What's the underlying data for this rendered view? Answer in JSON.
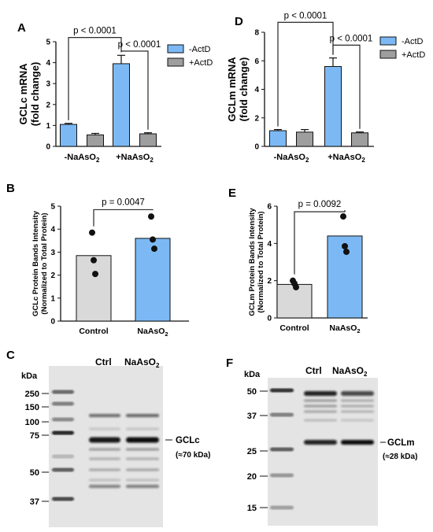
{
  "panels": {
    "A": "A",
    "B": "B",
    "C": "C",
    "D": "D",
    "E": "E",
    "F": "F"
  },
  "chart_data": [
    {
      "id": "A",
      "type": "bar",
      "ylabel_line1": "GCLc mRNA",
      "ylabel_line2": "(fold change)",
      "ylim": [
        0,
        5
      ],
      "yticks": [
        "0",
        "1",
        "2",
        "3",
        "4",
        "5"
      ],
      "categories": [
        {
          "base": "-NaAsO",
          "sub": "2"
        },
        {
          "base": "+NaAsO",
          "sub": "2"
        }
      ],
      "series": [
        {
          "name": "-ActD",
          "color": "#7cb9f4",
          "values": [
            1.05,
            3.95
          ],
          "errors": [
            0.05,
            0.4
          ]
        },
        {
          "name": "+ActD",
          "color": "#9e9e9e",
          "values": [
            0.55,
            0.6
          ],
          "errors": [
            0.07,
            0.05
          ]
        }
      ],
      "annotations": [
        {
          "text": "p < 0.0001",
          "from": "g0s0",
          "to": "g1s0",
          "level": 5.2
        },
        {
          "text": "p < 0.0001",
          "from": "g1s0",
          "to": "g1s1",
          "level": 4.55
        }
      ]
    },
    {
      "id": "D",
      "type": "bar",
      "ylabel_line1": "GCLm mRNA",
      "ylabel_line2": "(fold change)",
      "ylim": [
        0,
        8
      ],
      "yticks": [
        "0",
        "2",
        "4",
        "6",
        "8"
      ],
      "categories": [
        {
          "base": "-NaAsO",
          "sub": "2"
        },
        {
          "base": "+NaAsO",
          "sub": "2"
        }
      ],
      "series": [
        {
          "name": "-ActD",
          "color": "#7cb9f4",
          "values": [
            1.1,
            5.6
          ],
          "errors": [
            0.08,
            0.6
          ]
        },
        {
          "name": "+ActD",
          "color": "#9e9e9e",
          "values": [
            1.0,
            0.95
          ],
          "errors": [
            0.18,
            0.06
          ]
        }
      ],
      "annotations": [
        {
          "text": "p < 0.0001",
          "from": "g0s0",
          "to": "g1s0",
          "level": 8.7
        },
        {
          "text": "p < 0.0001",
          "from": "g1s0",
          "to": "g1s1",
          "level": 7.1
        }
      ]
    },
    {
      "id": "B",
      "type": "bar",
      "ylabel_line1": "GCLc Protein Bands Intensity",
      "ylabel_line2": "(Normalized to Total Protein)",
      "ylim": [
        0,
        5
      ],
      "yticks": [
        "0",
        "1",
        "2",
        "3",
        "4",
        "5"
      ],
      "categories": [
        {
          "base": "Control",
          "sub": ""
        },
        {
          "base": "NaAsO",
          "sub": "2"
        }
      ],
      "colors": [
        "#d9d9d9",
        "#7cb9f4"
      ],
      "values": [
        2.85,
        3.6
      ],
      "points": [
        [
          3.85,
          2.65,
          2.05
        ],
        [
          4.55,
          3.55,
          3.15
        ]
      ],
      "annotation": {
        "text": "p = 0.0047",
        "level": 4.85
      }
    },
    {
      "id": "E",
      "type": "bar",
      "ylabel_line1": "GCLm Protein Bands Intensity",
      "ylabel_line2": "(Normalized to Total Protein)",
      "ylim": [
        0,
        6
      ],
      "yticks": [
        "0",
        "2",
        "4",
        "6"
      ],
      "categories": [
        {
          "base": "Control",
          "sub": ""
        },
        {
          "base": "NaAsO",
          "sub": "2"
        }
      ],
      "colors": [
        "#d9d9d9",
        "#7cb9f4"
      ],
      "values": [
        1.8,
        4.4
      ],
      "points": [
        [
          2.0,
          1.85,
          1.65
        ],
        [
          5.45,
          3.85,
          3.55
        ]
      ],
      "annotation": {
        "text": "p = 0.0092",
        "level": 5.7
      }
    }
  ],
  "blots": {
    "C": {
      "kda_label": "kDa",
      "lane_ctrl": "Ctrl",
      "lane_treat_base": "NaAsO",
      "lane_treat_sub": "2",
      "markers": [
        "250",
        "150",
        "100",
        "75",
        "50",
        "37"
      ],
      "target": "GCLc",
      "target_size": "(≈70 kDa)"
    },
    "F": {
      "kda_label": "kDa",
      "lane_ctrl": "Ctrl",
      "lane_treat_base": "NaAsO",
      "lane_treat_sub": "2",
      "markers": [
        "50",
        "37",
        "25",
        "20",
        "15"
      ],
      "target": "GCLm",
      "target_size": "(≈28 kDa)"
    }
  }
}
